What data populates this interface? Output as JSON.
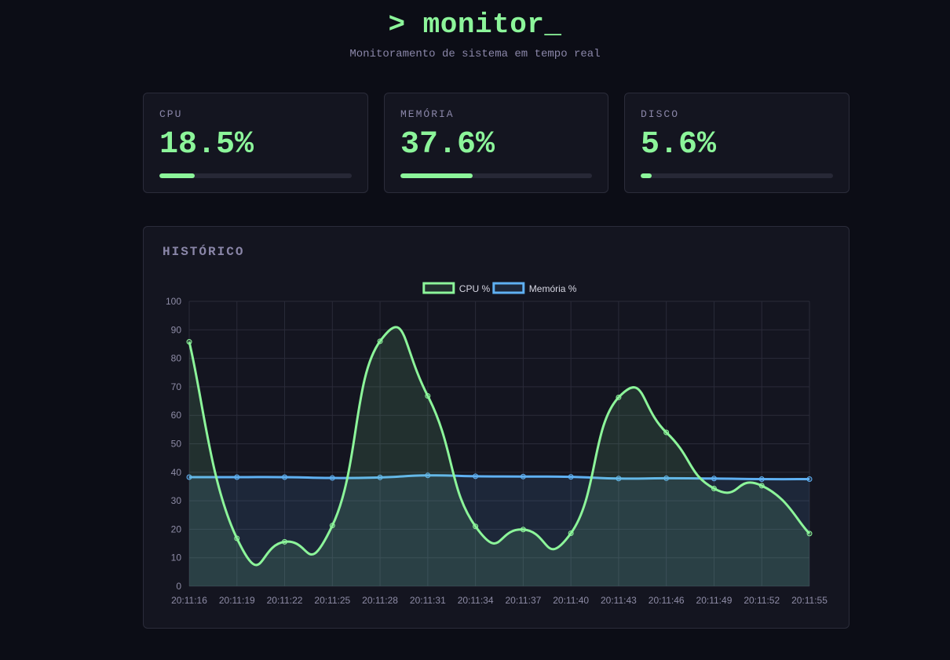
{
  "header": {
    "title": "> monitor_",
    "subtitle": "Monitoramento de sistema em tempo real"
  },
  "metrics": [
    {
      "label": "CPU",
      "value": "18.5%",
      "percent": 18.5
    },
    {
      "label": "MEMÓRIA",
      "value": "37.6%",
      "percent": 37.6
    },
    {
      "label": "DISCO",
      "value": "5.6%",
      "percent": 5.6
    }
  ],
  "history": {
    "title": "HISTÓRICO"
  },
  "colors": {
    "accent": "#8cf59a",
    "memory": "#5fb0f2",
    "background": "#0c0d16",
    "panel": "#141520"
  },
  "chart_data": {
    "type": "line",
    "x": [
      "20:11:16",
      "20:11:19",
      "20:11:22",
      "20:11:25",
      "20:11:28",
      "20:11:31",
      "20:11:34",
      "20:11:37",
      "20:11:40",
      "20:11:43",
      "20:11:46",
      "20:11:49",
      "20:11:52",
      "20:11:55"
    ],
    "series": [
      {
        "name": "CPU %",
        "color": "#8cf59a",
        "values": [
          85.8,
          16.8,
          15.6,
          21.3,
          86.0,
          66.8,
          21.0,
          19.9,
          18.6,
          66.3,
          54.0,
          34.3,
          35.3,
          18.5
        ]
      },
      {
        "name": "Memória %",
        "color": "#5fb0f2",
        "values": [
          38.3,
          38.3,
          38.3,
          38.0,
          38.2,
          38.9,
          38.6,
          38.5,
          38.4,
          37.8,
          37.9,
          37.8,
          37.6,
          37.6
        ]
      }
    ],
    "ylim": [
      0,
      100
    ],
    "yticks": [
      0,
      10,
      20,
      30,
      40,
      50,
      60,
      70,
      80,
      90,
      100
    ],
    "grid": true,
    "legend": "top-center",
    "fill": true,
    "smooth": true
  }
}
